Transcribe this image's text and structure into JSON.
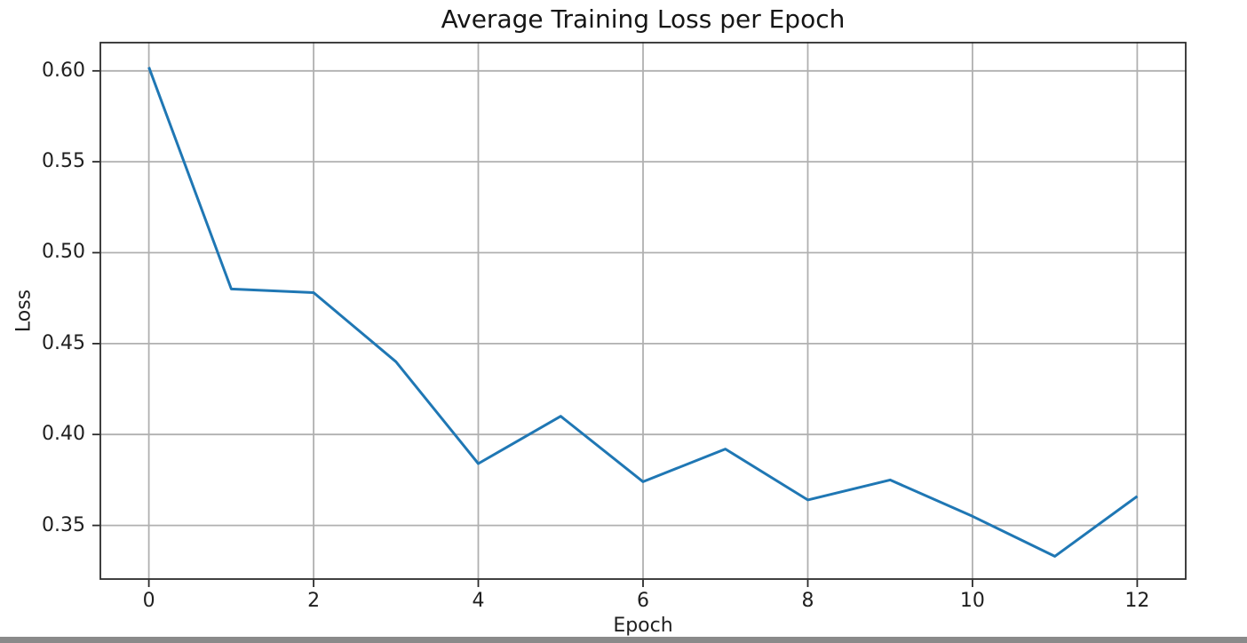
{
  "window": {
    "background": "#ffffff",
    "bottom_bar_color": "#8a8a8a"
  },
  "chart_data": {
    "type": "line",
    "title": "Average Training Loss per Epoch",
    "xlabel": "Epoch",
    "ylabel": "Loss",
    "x": [
      0,
      1,
      2,
      3,
      4,
      5,
      6,
      7,
      8,
      9,
      10,
      11,
      12
    ],
    "series": [
      {
        "color": "#1f77b4",
        "values": [
          0.602,
          0.48,
          0.478,
          0.44,
          0.384,
          0.41,
          0.374,
          0.392,
          0.364,
          0.375,
          0.355,
          0.333,
          0.366
        ]
      }
    ],
    "xlim": [
      -0.6,
      12.6
    ],
    "ylim": [
      0.32,
      0.616
    ],
    "xticks": [
      0,
      2,
      4,
      6,
      8,
      10,
      12
    ],
    "xtick_labels": [
      "0",
      "2",
      "4",
      "6",
      "8",
      "10",
      "12"
    ],
    "yticks": [
      0.35,
      0.4,
      0.45,
      0.5,
      0.55,
      0.6
    ],
    "ytick_labels": [
      "0.35",
      "0.40",
      "0.45",
      "0.50",
      "0.55",
      "0.60"
    ],
    "grid": true,
    "legend": false,
    "grid_color": "#b0b0b0",
    "axis_color": "#2b2b2b",
    "tick_color": "#2b2b2b",
    "line_width": 3
  }
}
